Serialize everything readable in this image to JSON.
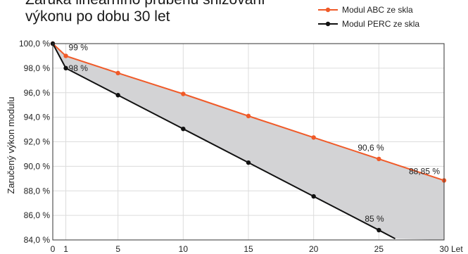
{
  "title_lines": [
    "Záruka lineárního průběhu snižování",
    "výkonu po dobu 30 let"
  ],
  "chart_data": {
    "type": "line",
    "ylabel": "Zaručený výkon modulu",
    "x_unit_label": "Let",
    "xlim": [
      0,
      30
    ],
    "ylim": [
      84,
      100
    ],
    "x_ticks": [
      0,
      1,
      5,
      10,
      15,
      20,
      25,
      30
    ],
    "x_tick_labels": [
      "0",
      "1",
      "5",
      "10",
      "15",
      "20",
      "25",
      "30"
    ],
    "y_ticks": [
      84,
      86,
      88,
      90,
      92,
      94,
      96,
      98,
      100
    ],
    "y_tick_labels": [
      "84,0 %",
      "86,0 %",
      "88,0 %",
      "90,0 %",
      "92,0 %",
      "94,0 %",
      "96,0 %",
      "98,0 %",
      "100,0 %"
    ],
    "grid": true,
    "legend_position": "top-right",
    "fill_between_series": true,
    "fill_color": "#d3d3d5",
    "series": [
      {
        "name": "Modul ABC ze skla",
        "color": "#f05a28",
        "x": [
          0,
          1,
          5,
          10,
          15,
          20,
          25,
          30
        ],
        "y": [
          100,
          99,
          97.6,
          95.9,
          94.1,
          92.35,
          90.6,
          88.85
        ]
      },
      {
        "name": "Modul PERC ze skla",
        "color": "#111111",
        "x": [
          0,
          1,
          5,
          10,
          15,
          20,
          25,
          26.25
        ],
        "y": [
          100,
          98,
          95.8,
          93.05,
          90.3,
          87.55,
          84.8,
          84.1
        ]
      }
    ],
    "annotations": [
      {
        "text": "99 %",
        "x": 1,
        "y": 99
      },
      {
        "text": "98 %",
        "x": 1,
        "y": 98
      },
      {
        "text": "90,6 %",
        "x": 25,
        "y": 90.6
      },
      {
        "text": "88,85 %",
        "x": 30,
        "y": 88.85
      },
      {
        "text": "85 %",
        "x": 25,
        "y": 84.8
      }
    ]
  }
}
